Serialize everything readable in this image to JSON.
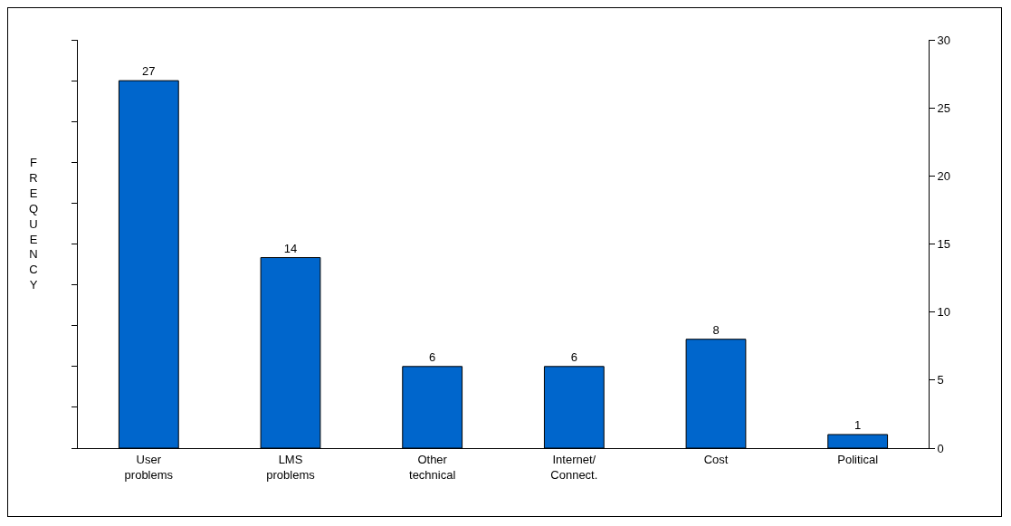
{
  "chart_data": {
    "type": "bar",
    "ylabel": "FREQUENCY",
    "categories": [
      "User problems",
      "LMS problems",
      "Other technical",
      "Internet/ Connect.",
      "Cost",
      "Political"
    ],
    "series": [
      {
        "color": "#0066cc",
        "values": [
          27,
          14,
          6,
          6,
          8,
          1
        ]
      }
    ],
    "data_labels": true,
    "ylim": [
      0,
      30
    ],
    "yticks": [
      {
        "value": 0,
        "label": null
      },
      {
        "value": 3,
        "label": null
      },
      {
        "value": 6,
        "label": null
      },
      {
        "value": 9,
        "label": null
      },
      {
        "value": 12,
        "label": null
      },
      {
        "value": 15,
        "label": null
      },
      {
        "value": 18,
        "label": null
      },
      {
        "value": 21,
        "label": null
      },
      {
        "value": 24,
        "label": null
      },
      {
        "value": 27,
        "label": null
      },
      {
        "value": 30,
        "label": null
      }
    ],
    "y2lim": [
      0,
      30
    ],
    "y2ticks": [
      0,
      5,
      10,
      15,
      20,
      25,
      30
    ]
  }
}
